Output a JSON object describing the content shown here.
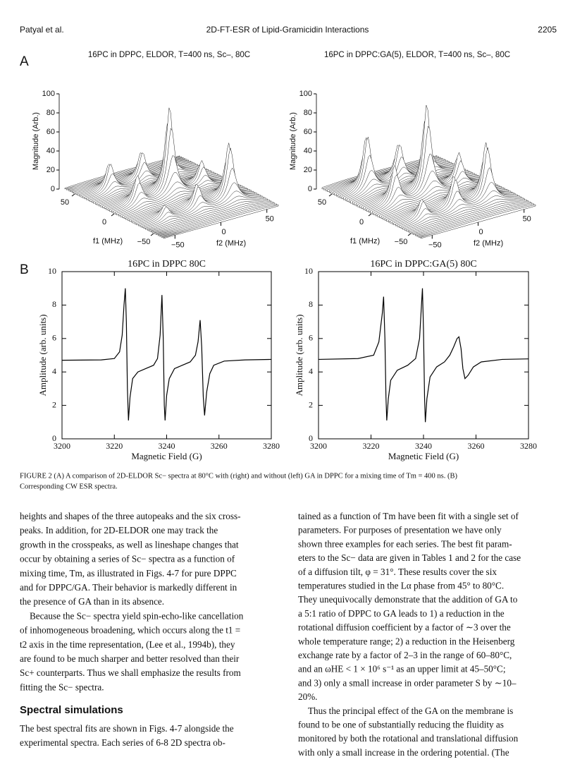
{
  "header": {
    "authors": "Patyal et al.",
    "title": "2D-FT-ESR of Lipid-Gramicidin Interactions",
    "page": "2205"
  },
  "figure_a": {
    "label": "A",
    "plots": [
      {
        "title": "16PC in DPPC, ELDOR, T=400 ns, Sc–, 80C",
        "zlabel": "Magnitude (Arb.)",
        "f1label": "f1 (MHz)",
        "f2label": "f2 (MHz)",
        "zticks": [
          0,
          20,
          40,
          60,
          80,
          100
        ],
        "f1ticks": [
          50,
          0,
          {
            "value": -50,
            "label": "−50"
          }
        ],
        "f2ticks": [
          {
            "value": -50,
            "label": "−50"
          },
          0,
          50
        ]
      },
      {
        "title": "16PC in DPPC:GA(5), ELDOR, T=400 ns, Sc–, 80C",
        "zlabel": "Magnitude (Arb.)",
        "f1label": "f1 (MHz)",
        "f2label": "f2 (MHz)",
        "zticks": [
          0,
          20,
          40,
          60,
          80,
          100
        ],
        "f1ticks": [
          50,
          0,
          {
            "value": -50,
            "label": "−50"
          }
        ],
        "f2ticks": [
          {
            "value": -50,
            "label": "−50"
          },
          0,
          50
        ]
      }
    ]
  },
  "figure_b": {
    "label": "B"
  },
  "chart_data": [
    {
      "type": "line",
      "title": "16PC in DPPC 80C",
      "xlabel": "Magnetic Field (G)",
      "ylabel": "Amplitude (arb. units)",
      "x": [
        3200,
        3215,
        3220,
        3222,
        3223,
        3223.7,
        3224.2,
        3224.6,
        3225,
        3225.4,
        3226,
        3227,
        3229,
        3232,
        3235,
        3236.5,
        3237.5,
        3238.2,
        3238.7,
        3239.1,
        3239.4,
        3240,
        3241,
        3243,
        3246,
        3249,
        3251,
        3252,
        3252.8,
        3253.4,
        3254,
        3254.5,
        3255.3,
        3256.5,
        3258,
        3262,
        3270,
        3280
      ],
      "series": [
        {
          "color": "#000000",
          "values": [
            4.7,
            4.72,
            4.8,
            5.2,
            6.2,
            8.0,
            9.0,
            7.0,
            3.0,
            1.1,
            2.5,
            3.6,
            4.0,
            4.2,
            4.4,
            4.8,
            6.2,
            8.6,
            6.0,
            2.0,
            1.1,
            2.6,
            3.6,
            4.2,
            4.4,
            4.6,
            5.0,
            5.8,
            7.1,
            5.5,
            2.5,
            1.4,
            2.8,
            3.9,
            4.4,
            4.65,
            4.72,
            4.75
          ]
        }
      ],
      "xlim": [
        3200,
        3280
      ],
      "ylim": [
        0,
        10
      ],
      "xticks": [
        3200,
        3220,
        3240,
        3260,
        3280
      ],
      "yticks": [
        0,
        2,
        4,
        6,
        8,
        10
      ]
    },
    {
      "type": "line",
      "title": "16PC in DPPC:GA(5) 80C",
      "xlabel": "Magnetic Field (G)",
      "ylabel": "Amplitude (arb. units)",
      "x": [
        3200,
        3215,
        3221,
        3223,
        3224.3,
        3224.8,
        3225.3,
        3225.7,
        3226,
        3226.6,
        3227.5,
        3230,
        3234,
        3237,
        3238.5,
        3239.3,
        3239.6,
        3240,
        3240.4,
        3240.7,
        3241.3,
        3242.5,
        3245,
        3248,
        3250,
        3251.5,
        3252.8,
        3253.5,
        3254.3,
        3255,
        3255.8,
        3257,
        3259,
        3262,
        3270,
        3280
      ],
      "series": [
        {
          "color": "#000000",
          "values": [
            4.75,
            4.8,
            5.0,
            5.8,
            7.5,
            8.5,
            6.0,
            2.5,
            1.1,
            2.4,
            3.5,
            4.1,
            4.4,
            4.8,
            6.0,
            8.2,
            9.0,
            6.5,
            2.5,
            1.0,
            2.4,
            3.7,
            4.3,
            4.6,
            5.0,
            5.5,
            6.0,
            6.1,
            5.4,
            4.2,
            3.6,
            3.8,
            4.3,
            4.6,
            4.75,
            4.78
          ]
        }
      ],
      "xlim": [
        3200,
        3280
      ],
      "ylim": [
        0,
        10
      ],
      "xticks": [
        3200,
        3220,
        3240,
        3260,
        3280
      ],
      "yticks": [
        0,
        2,
        4,
        6,
        8,
        10
      ]
    }
  ],
  "caption": [
    "FIGURE 2   (A) A comparison of 2D-ELDOR Sc− spectra at 80°C with (right) and without (left) GA in DPPC for a mixing time of Tm = 400 ns. (B)",
    "Corresponding CW ESR spectra."
  ],
  "body": {
    "left": [
      [
        "heights and shapes of the three autopeaks and the six cross-",
        "peaks. In addition, for 2D-ELDOR one may track the",
        "growth in the crosspeaks, as well as lineshape changes that",
        "occur by obtaining a series of Sc− spectra as a function of",
        "mixing time, Tm, as illustrated in Figs. 4-7 for pure DPPC",
        "and for DPPC/GA. Their behavior is markedly different in",
        "the presence of GA than in its absence."
      ],
      [
        "Because the Sc− spectra yield spin-echo-like cancellation",
        "of inhomogeneous broadening, which occurs along the t1 =",
        "t2 axis in the time representation, (Lee et al., 1994b), they",
        "are found to be much sharper and better resolved than their",
        "Sc+ counterparts. Thus we shall emphasize the results from",
        "fitting the Sc− spectra."
      ]
    ],
    "heading": "Spectral simulations",
    "after_heading": [
      "The best spectral fits are shown in Figs. 4-7 alongside the",
      "experimental spectra. Each series of 6-8 2D spectra ob-"
    ],
    "right": [
      [
        "tained as a function of Tm have been fit with a single set of",
        "parameters. For purposes of presentation we have only",
        "shown three examples for each series. The best fit param-",
        "eters to the Sc− data are given in Tables 1 and 2 for the case",
        "of a diffusion tilt, φ = 31°. These results cover the six",
        "temperatures studied in the Lα phase from 45° to 80°C.",
        "They unequivocally demonstrate that the addition of GA to",
        "a 5:1 ratio of DPPC to GA leads to 1) a reduction in the",
        "rotational diffusion coefficient by a factor of ∼3 over the",
        "whole temperature range; 2) a reduction in the Heisenberg",
        "exchange rate by a factor of 2–3 in the range of 60–80°C,",
        "and an ωHE < 1 × 10⁶ s⁻¹ as an upper limit at 45–50°C;",
        "and 3) only a small increase in order parameter S by ∼10–",
        "20%."
      ],
      [
        "Thus the principal effect of the GA on the membrane is",
        "found to be one of substantially reducing the fluidity as",
        "monitored by both the rotational and translational diffusion",
        "with only a small increase in the ordering potential. (The"
      ]
    ]
  }
}
